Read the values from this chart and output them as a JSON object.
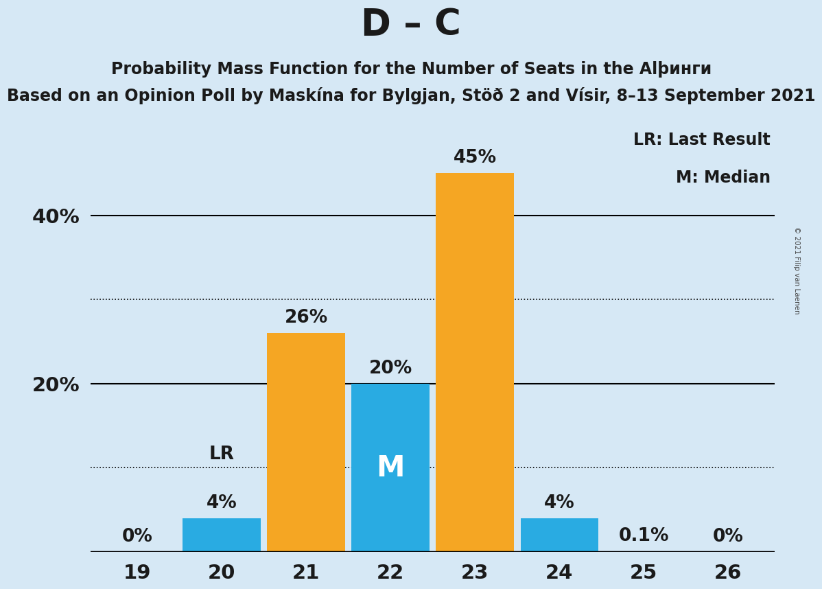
{
  "title": "D – C",
  "subtitle1": "Probability Mass Function for the Number of Seats in the Alþинги",
  "subtitle2": "Based on an Opinion Poll by Maskína for Bylgjan, Stöð 2 and Vísir, 8–13 September 2021",
  "copyright": "© 2021 Filip van Laenen",
  "categories": [
    19,
    20,
    21,
    22,
    23,
    24,
    25,
    26
  ],
  "values": [
    0.0,
    4.0,
    26.0,
    20.0,
    45.0,
    4.0,
    0.1,
    0.0
  ],
  "labels": [
    "0%",
    "4%",
    "26%",
    "20%",
    "45%",
    "4%",
    "0.1%",
    "0%"
  ],
  "bar_colors": [
    "#29ABE2",
    "#29ABE2",
    "#F5A623",
    "#29ABE2",
    "#F5A623",
    "#29ABE2",
    "#29ABE2",
    "#29ABE2"
  ],
  "median_bar_idx": 3,
  "lr_bar_idx": 1,
  "median_label": "M",
  "lr_label": "LR",
  "legend_lr": "LR: Last Result",
  "legend_m": "M: Median",
  "background_color": "#D6E8F5",
  "ylim": [
    0,
    52
  ],
  "dotted_lines": [
    10.0,
    30.0
  ],
  "solid_lines": [
    20.0,
    40.0
  ],
  "title_fontsize": 38,
  "subtitle1_fontsize": 17,
  "subtitle2_fontsize": 17,
  "label_fontsize": 19,
  "tick_fontsize": 21,
  "ytick_values": [
    20,
    40
  ],
  "ytick_labels": [
    "20%",
    "40%"
  ],
  "bar_width": 0.92
}
